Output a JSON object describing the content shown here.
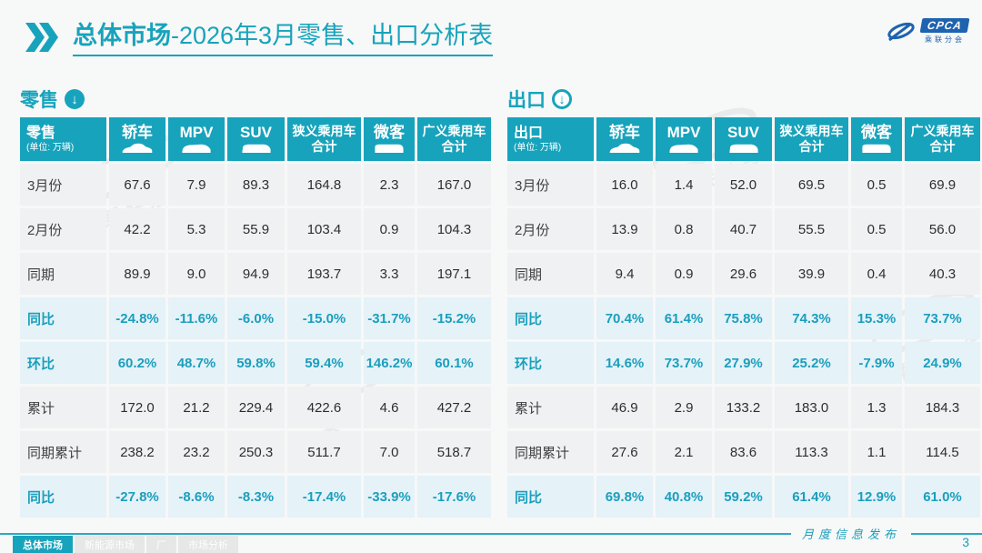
{
  "title": {
    "highlight": "总体市场",
    "rest": "-2026年3月零售、出口分析表"
  },
  "logo": {
    "badge": "CPCA",
    "sub": "乘联分会"
  },
  "watermark_text": "乘联分会",
  "colors": {
    "accent": "#17a3bc",
    "row_bg": "#f0f1f2",
    "pct_bg": "#e5f2f8",
    "header_text": "#ffffff",
    "logo_blue": "#1e63b0"
  },
  "columns": [
    {
      "label": "轿车",
      "icon": "sedan-icon"
    },
    {
      "label": "MPV",
      "icon": "mpv-icon"
    },
    {
      "label": "SUV",
      "icon": "suv-icon"
    },
    {
      "label": "狭义乘用车合计",
      "lines": [
        "狭义乘用车",
        "合计"
      ]
    },
    {
      "label": "微客",
      "icon": "minivan-icon"
    },
    {
      "label": "广义乘用车合计",
      "lines": [
        "广义乘用车",
        "合计"
      ]
    }
  ],
  "tables": [
    {
      "section_label": "零售",
      "arrow_style": "fill",
      "corner": {
        "name": "零售",
        "unit": "(单位: 万辆)"
      },
      "rows": [
        {
          "label": "3月份",
          "pct": false,
          "values": [
            "67.6",
            "7.9",
            "89.3",
            "164.8",
            "2.3",
            "167.0"
          ]
        },
        {
          "label": "2月份",
          "pct": false,
          "values": [
            "42.2",
            "5.3",
            "55.9",
            "103.4",
            "0.9",
            "104.3"
          ]
        },
        {
          "label": "同期",
          "pct": false,
          "values": [
            "89.9",
            "9.0",
            "94.9",
            "193.7",
            "3.3",
            "197.1"
          ]
        },
        {
          "label": "同比",
          "pct": true,
          "values": [
            "-24.8%",
            "-11.6%",
            "-6.0%",
            "-15.0%",
            "-31.7%",
            "-15.2%"
          ]
        },
        {
          "label": "环比",
          "pct": true,
          "values": [
            "60.2%",
            "48.7%",
            "59.8%",
            "59.4%",
            "146.2%",
            "60.1%"
          ]
        },
        {
          "label": "累计",
          "pct": false,
          "values": [
            "172.0",
            "21.2",
            "229.4",
            "422.6",
            "4.6",
            "427.2"
          ]
        },
        {
          "label": "同期累计",
          "pct": false,
          "values": [
            "238.2",
            "23.2",
            "250.3",
            "511.7",
            "7.0",
            "518.7"
          ]
        },
        {
          "label": "同比",
          "pct": true,
          "values": [
            "-27.8%",
            "-8.6%",
            "-8.3%",
            "-17.4%",
            "-33.9%",
            "-17.6%"
          ]
        }
      ]
    },
    {
      "section_label": "出口",
      "arrow_style": "ring",
      "corner": {
        "name": "出口",
        "unit": "(单位: 万辆)"
      },
      "rows": [
        {
          "label": "3月份",
          "pct": false,
          "values": [
            "16.0",
            "1.4",
            "52.0",
            "69.5",
            "0.5",
            "69.9"
          ]
        },
        {
          "label": "2月份",
          "pct": false,
          "values": [
            "13.9",
            "0.8",
            "40.7",
            "55.5",
            "0.5",
            "56.0"
          ]
        },
        {
          "label": "同期",
          "pct": false,
          "values": [
            "9.4",
            "0.9",
            "29.6",
            "39.9",
            "0.4",
            "40.3"
          ]
        },
        {
          "label": "同比",
          "pct": true,
          "values": [
            "70.4%",
            "61.4%",
            "75.8%",
            "74.3%",
            "15.3%",
            "73.7%"
          ]
        },
        {
          "label": "环比",
          "pct": true,
          "values": [
            "14.6%",
            "73.7%",
            "27.9%",
            "25.2%",
            "-7.9%",
            "24.9%"
          ]
        },
        {
          "label": "累计",
          "pct": false,
          "values": [
            "46.9",
            "2.9",
            "133.2",
            "183.0",
            "1.3",
            "184.3"
          ]
        },
        {
          "label": "同期累计",
          "pct": false,
          "values": [
            "27.6",
            "2.1",
            "83.6",
            "113.3",
            "1.1",
            "114.5"
          ]
        },
        {
          "label": "同比",
          "pct": true,
          "values": [
            "69.8%",
            "40.8%",
            "59.2%",
            "61.4%",
            "12.9%",
            "61.0%"
          ]
        }
      ]
    }
  ],
  "footer": {
    "publication": "月度信息发布",
    "page": "3",
    "tabs": [
      {
        "label": "总体市场",
        "active": true
      },
      {
        "label": "新能源市场",
        "active": false
      },
      {
        "label": "厂",
        "active": false
      },
      {
        "label": "市场分析",
        "active": false
      }
    ]
  }
}
